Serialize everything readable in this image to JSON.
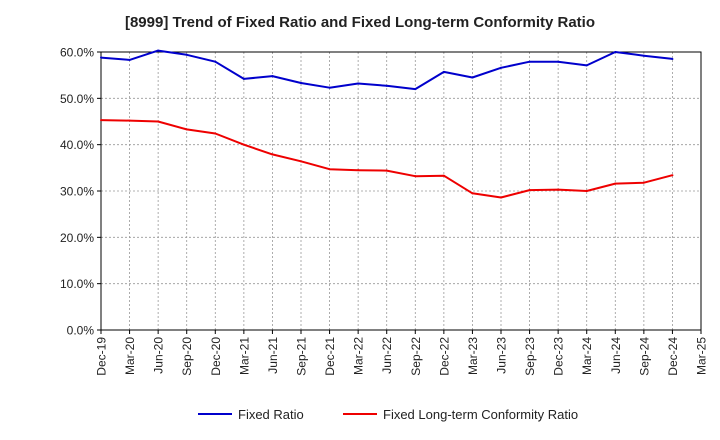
{
  "chart_data": {
    "type": "line",
    "title": "[8999]  Trend of Fixed Ratio and Fixed Long-term Conformity Ratio",
    "xlabel": "",
    "ylabel": "",
    "categories": [
      "Dec-19",
      "Mar-20",
      "Jun-20",
      "Sep-20",
      "Dec-20",
      "Mar-21",
      "Jun-21",
      "Sep-21",
      "Dec-21",
      "Mar-22",
      "Jun-22",
      "Sep-22",
      "Dec-22",
      "Mar-23",
      "Jun-23",
      "Sep-23",
      "Dec-23",
      "Mar-24",
      "Jun-24",
      "Sep-24",
      "Dec-24",
      "Mar-25"
    ],
    "ylim": [
      0,
      60
    ],
    "yticks": [
      "0.0%",
      "10.0%",
      "20.0%",
      "30.0%",
      "40.0%",
      "50.0%",
      "60.0%"
    ],
    "grid": true,
    "legend_position": "bottom",
    "series": [
      {
        "name": "Fixed Ratio",
        "color": "#0000cc",
        "values": [
          58.8,
          58.3,
          60.3,
          59.4,
          57.9,
          54.2,
          54.8,
          53.3,
          52.3,
          53.2,
          52.7,
          52.0,
          55.7,
          54.5,
          56.6,
          57.9,
          57.9,
          57.1,
          60.0,
          59.2,
          58.5,
          null
        ]
      },
      {
        "name": "Fixed Long-term Conformity Ratio",
        "color": "#ee0000",
        "values": [
          45.3,
          45.2,
          45.0,
          43.3,
          42.4,
          40.0,
          37.9,
          36.4,
          34.7,
          34.5,
          34.4,
          33.2,
          33.3,
          29.5,
          28.6,
          30.2,
          30.3,
          30.0,
          31.6,
          31.8,
          33.4,
          null
        ]
      }
    ]
  }
}
